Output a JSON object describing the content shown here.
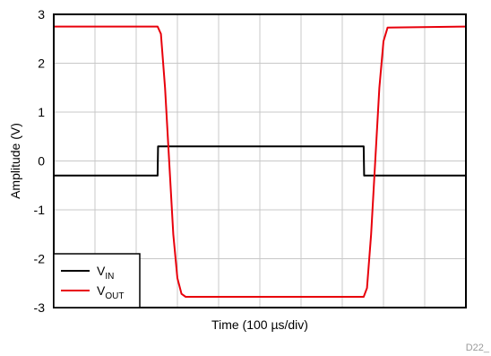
{
  "chart_data": {
    "type": "line",
    "title": "",
    "xlabel": "Time (100 µs/div)",
    "ylabel": "Amplitude (V)",
    "figure_id": "D22_",
    "ylim": [
      -3,
      3
    ],
    "yticks": [
      3,
      2,
      1,
      0,
      -1,
      -2,
      -3
    ],
    "ytick_labels": [
      "3",
      "2",
      "1",
      "0",
      "-1",
      "-2",
      "-3"
    ],
    "xlim": [
      0,
      10
    ],
    "x_divisions": 10,
    "grid": true,
    "legend_position": "bottom-left",
    "series": [
      {
        "name_main": "V",
        "name_sub": "IN",
        "color": "#000000",
        "x": [
          0,
          2.52,
          2.53,
          7.52,
          7.53,
          10
        ],
        "y": [
          -0.3,
          -0.3,
          0.3,
          0.3,
          -0.3,
          -0.3
        ]
      },
      {
        "name_main": "V",
        "name_sub": "OUT",
        "color": "#e8000b",
        "x": [
          0,
          2.52,
          2.6,
          2.7,
          2.8,
          2.9,
          3.0,
          3.1,
          3.2,
          3.3,
          7.52,
          7.6,
          7.7,
          7.8,
          7.9,
          8.0,
          8.1,
          10
        ],
        "y": [
          2.75,
          2.75,
          2.6,
          1.5,
          0.0,
          -1.5,
          -2.4,
          -2.72,
          -2.78,
          -2.78,
          -2.78,
          -2.6,
          -1.5,
          0.0,
          1.5,
          2.45,
          2.73,
          2.75
        ]
      }
    ]
  }
}
